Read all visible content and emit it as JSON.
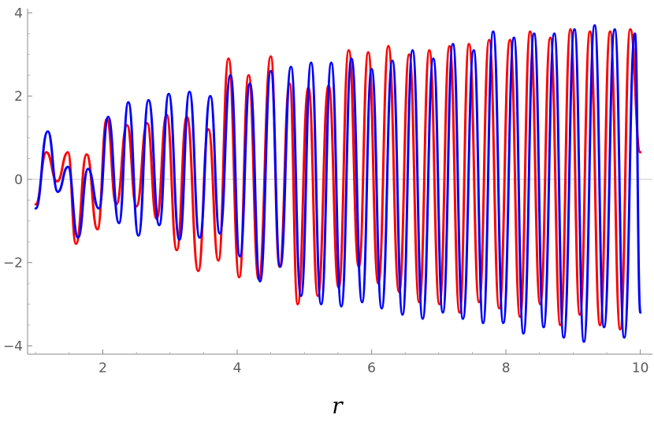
{
  "chart_data": {
    "type": "line",
    "title": "",
    "xlabel": "r",
    "ylabel": "",
    "xlim": [
      0.88,
      10.18
    ],
    "ylim": [
      -4.2,
      4.1
    ],
    "xticks": [
      2,
      4,
      6,
      8,
      10
    ],
    "xtick_labels": [
      "2",
      "4",
      "6",
      "8",
      "10"
    ],
    "yticks": [
      -4,
      -2,
      0,
      2,
      4
    ],
    "ytick_labels": [
      "−4",
      "−2",
      "0",
      "2",
      "4"
    ],
    "grid": false,
    "zero_line": true,
    "series": [
      {
        "color": "#ff0000",
        "x": [
          1.0,
          1.16,
          1.32,
          1.48,
          1.6,
          1.76,
          1.92,
          2.06,
          2.2,
          2.36,
          2.5,
          2.66,
          2.8,
          2.95,
          3.1,
          3.25,
          3.42,
          3.57,
          3.72,
          3.87,
          4.03,
          4.17,
          4.32,
          4.5,
          4.63,
          4.78,
          4.9,
          5.06,
          5.2,
          5.36,
          5.51,
          5.66,
          5.81,
          5.95,
          6.1,
          6.25,
          6.41,
          6.56,
          6.71,
          6.86,
          7.01,
          7.16,
          7.31,
          7.45,
          7.6,
          7.75,
          7.9,
          8.06,
          8.21,
          8.36,
          8.51,
          8.66,
          8.81,
          8.96,
          9.1,
          9.25,
          9.4,
          9.55,
          9.7,
          9.85,
          10.0
        ],
        "y": [
          -0.6,
          0.65,
          -0.05,
          0.65,
          -1.55,
          0.6,
          -1.2,
          1.45,
          -0.6,
          1.3,
          -0.65,
          1.35,
          -0.95,
          1.55,
          -1.7,
          1.5,
          -2.2,
          1.2,
          -1.95,
          2.9,
          -2.35,
          2.5,
          -2.4,
          2.95,
          -2.1,
          2.3,
          -3.0,
          2.2,
          -2.8,
          2.25,
          -2.6,
          3.1,
          -2.1,
          3.05,
          -2.5,
          3.2,
          -2.7,
          3.0,
          -2.95,
          3.1,
          -3.0,
          3.2,
          -3.2,
          3.25,
          -2.95,
          3.35,
          -3.1,
          3.35,
          -3.3,
          3.55,
          -3.0,
          3.4,
          -3.5,
          3.6,
          -3.25,
          3.55,
          -3.5,
          3.55,
          -3.6,
          3.6,
          0.65
        ]
      },
      {
        "color": "#0000ff",
        "x": [
          1.0,
          1.18,
          1.33,
          1.48,
          1.63,
          1.78,
          1.94,
          2.08,
          2.24,
          2.38,
          2.53,
          2.68,
          2.84,
          2.98,
          3.14,
          3.29,
          3.44,
          3.6,
          3.74,
          3.9,
          4.04,
          4.19,
          4.34,
          4.5,
          4.64,
          4.8,
          4.95,
          5.1,
          5.25,
          5.4,
          5.55,
          5.7,
          5.86,
          6.0,
          6.15,
          6.31,
          6.46,
          6.61,
          6.76,
          6.92,
          7.06,
          7.21,
          7.36,
          7.52,
          7.66,
          7.81,
          7.96,
          8.12,
          8.26,
          8.42,
          8.56,
          8.72,
          8.86,
          9.02,
          9.16,
          9.32,
          9.46,
          9.62,
          9.76,
          9.92,
          10.0
        ],
        "y": [
          -0.7,
          1.15,
          -0.3,
          0.3,
          -1.4,
          0.25,
          -0.7,
          1.5,
          -1.05,
          1.85,
          -1.35,
          1.9,
          -1.1,
          2.05,
          -1.45,
          2.1,
          -1.4,
          2.0,
          -1.3,
          2.5,
          -1.85,
          2.3,
          -2.45,
          2.6,
          -2.1,
          2.7,
          -2.8,
          2.8,
          -3.0,
          2.8,
          -3.05,
          2.9,
          -2.95,
          2.65,
          -3.1,
          2.85,
          -3.25,
          3.1,
          -3.35,
          2.9,
          -3.2,
          3.25,
          -3.35,
          3.1,
          -3.45,
          3.55,
          -3.45,
          3.4,
          -3.7,
          3.5,
          -3.55,
          3.5,
          -3.8,
          3.6,
          -3.9,
          3.7,
          -3.55,
          3.6,
          -3.8,
          3.5,
          -3.2
        ]
      }
    ]
  }
}
